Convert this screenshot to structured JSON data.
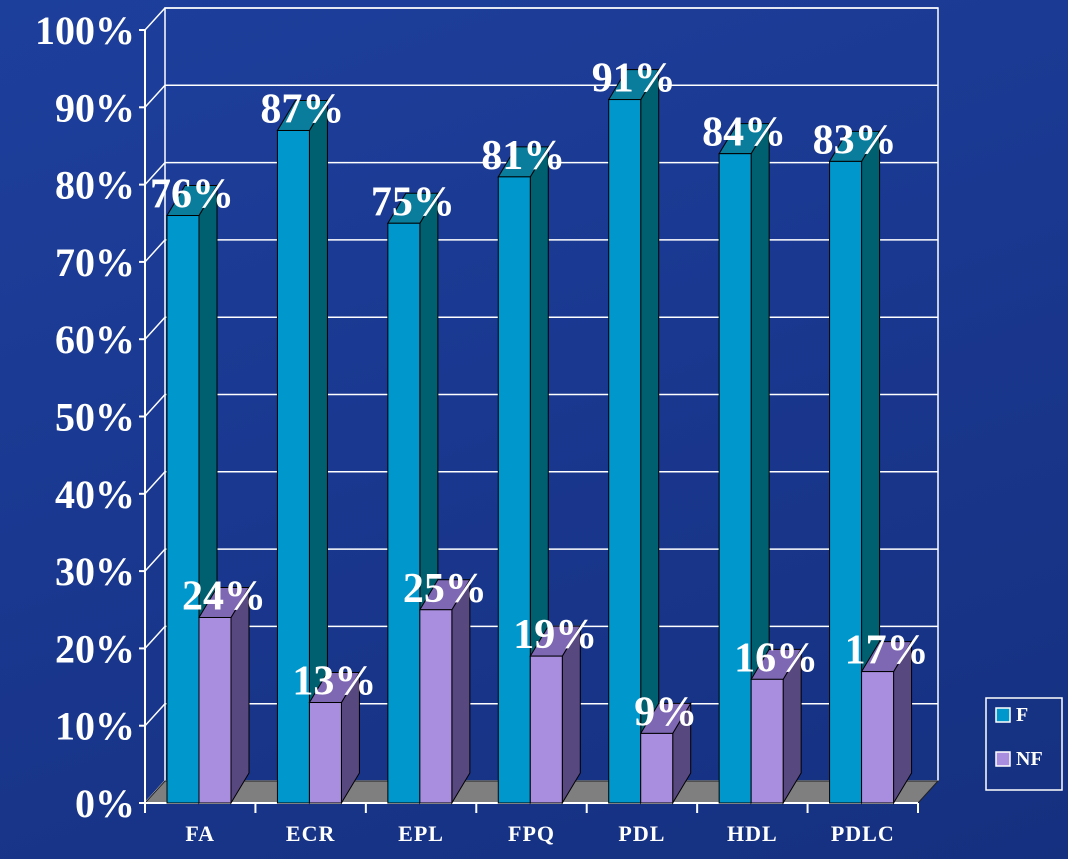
{
  "chart_data": {
    "type": "bar",
    "categories": [
      "FA",
      "ECR",
      "EPL",
      "FPQ",
      "PDL",
      "HDL",
      "PDLC"
    ],
    "series": [
      {
        "name": "F",
        "values": [
          76,
          87,
          75,
          81,
          91,
          84,
          83
        ],
        "labels": [
          "76%",
          "87%",
          "75%",
          "81%",
          "91%",
          "84%",
          "83%"
        ],
        "color": "#0098cc",
        "side_color": "#006070",
        "top_color": "#0a7c9c"
      },
      {
        "name": "NF",
        "values": [
          24,
          13,
          25,
          19,
          9,
          16,
          17
        ],
        "labels": [
          "24%",
          "13%",
          "25%",
          "19%",
          "9%",
          "16%",
          "17%"
        ],
        "color": "#a98ee0",
        "side_color": "#574880",
        "top_color": "#7e68b4"
      }
    ],
    "yticks": [
      "0%",
      "10%",
      "20%",
      "30%",
      "40%",
      "50%",
      "60%",
      "70%",
      "80%",
      "90%",
      "100%"
    ],
    "ylim": [
      0,
      100
    ],
    "grid": true,
    "three_d": true,
    "legend": "right",
    "floor_color": "#7f7f7f"
  }
}
